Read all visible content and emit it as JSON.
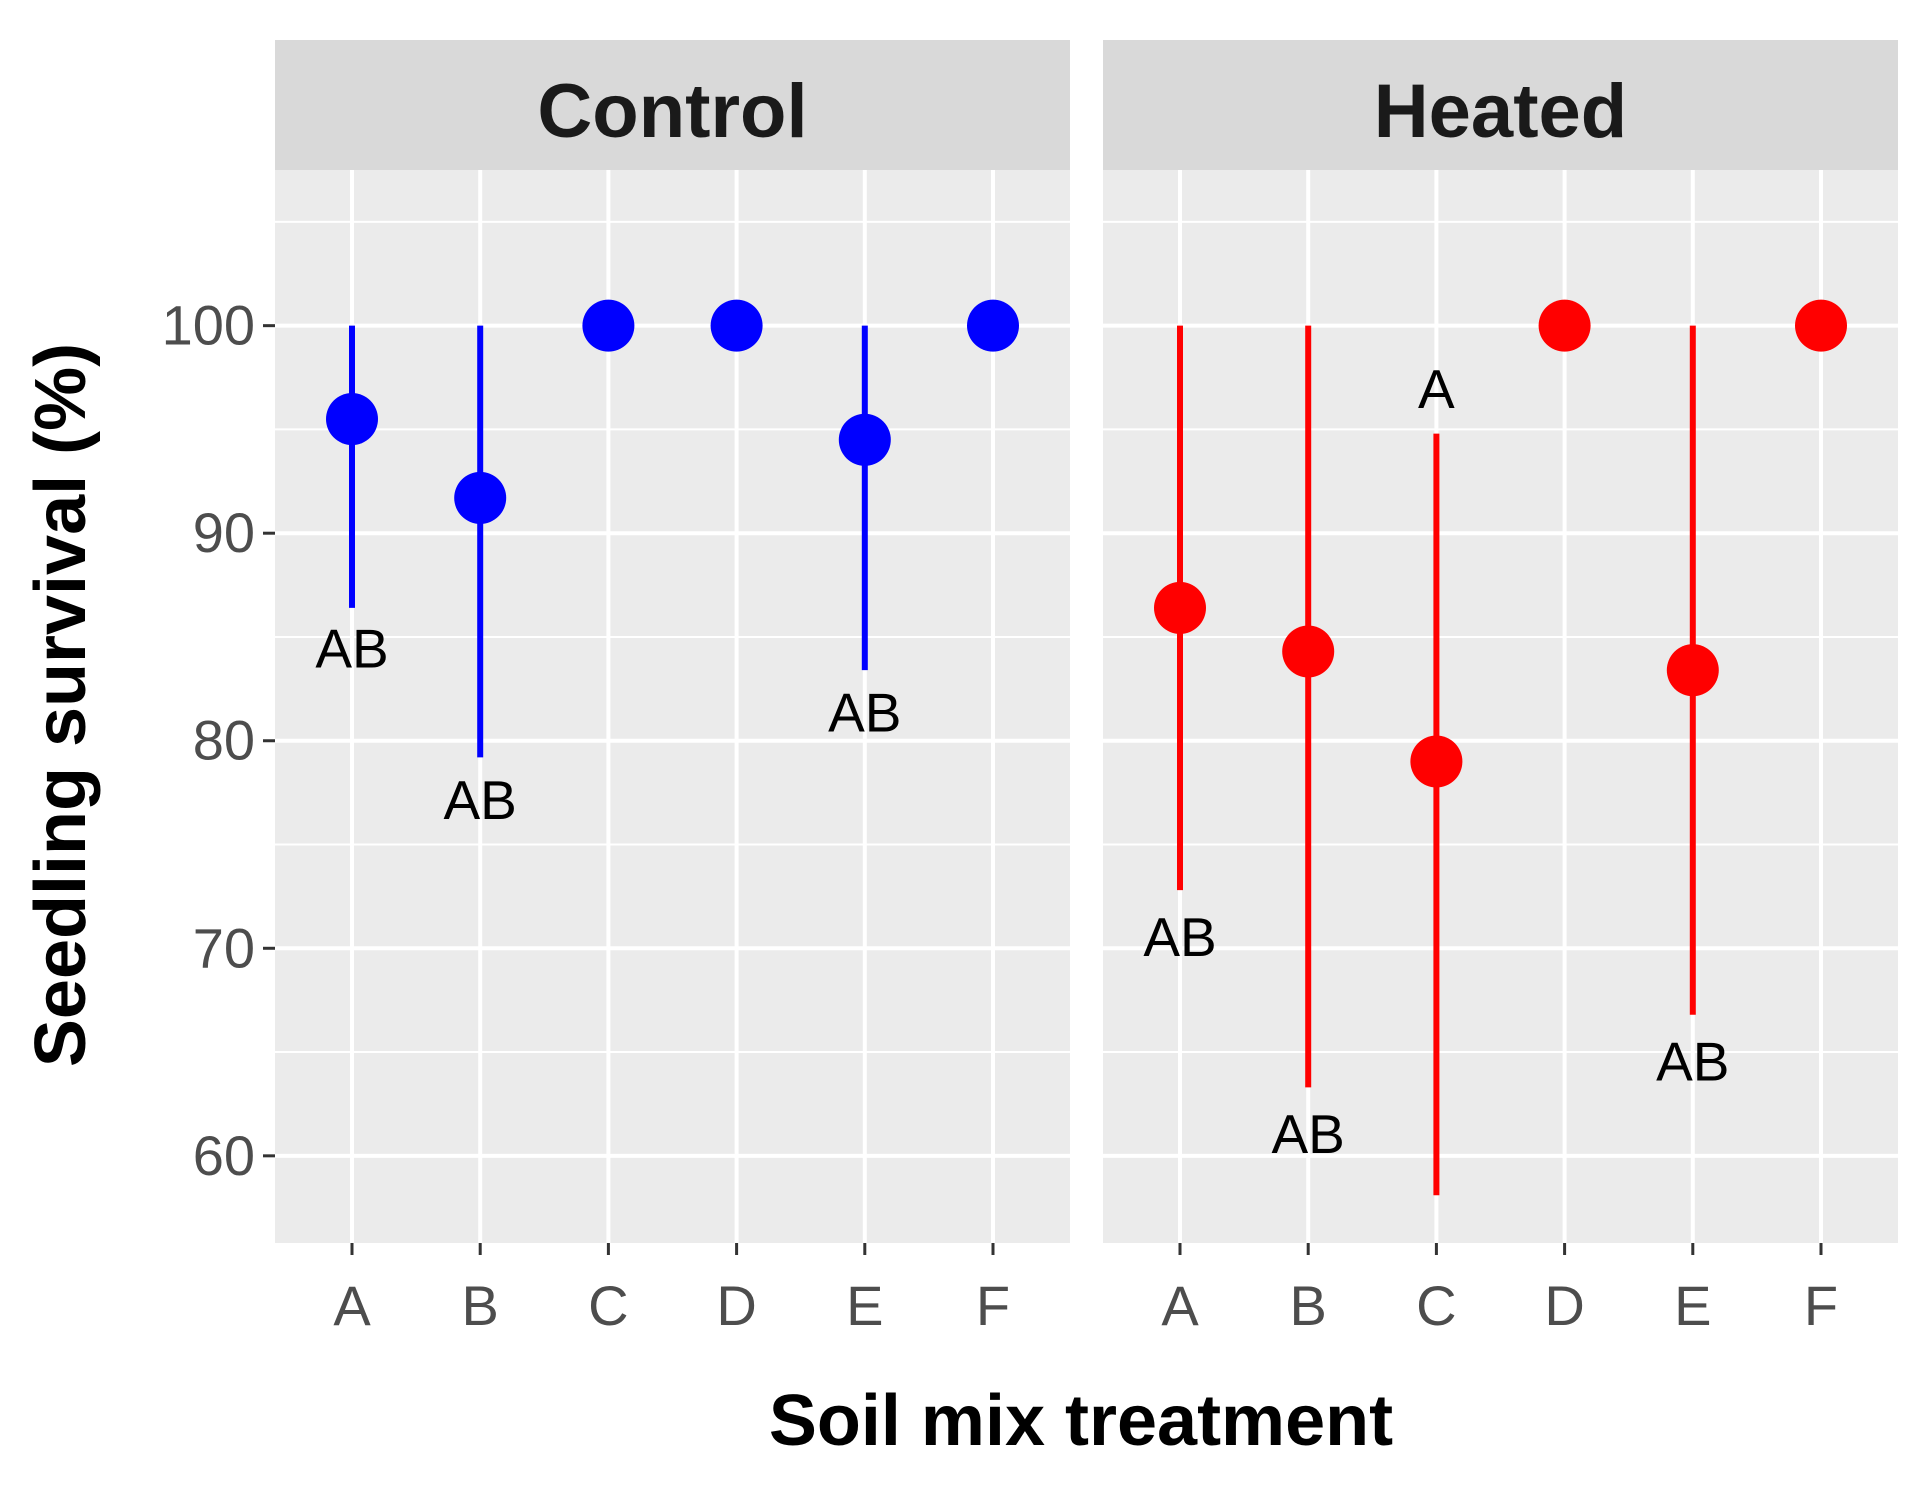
{
  "chart_data": {
    "type": "scatter",
    "subtype": "point-range (faceted)",
    "xlabel": "Soil mix treatment",
    "ylabel": "Seedling survival (%)",
    "categories": [
      "A",
      "B",
      "C",
      "D",
      "E",
      "F"
    ],
    "ylim": [
      55.8,
      107.5
    ],
    "yticks": [
      60,
      70,
      80,
      90,
      100
    ],
    "grid": true,
    "facets": [
      {
        "name": "Control",
        "color": "#0000ff",
        "points": [
          {
            "x": "A",
            "y": 95.5,
            "ymin": 86.4,
            "ymax": 100,
            "label": "AB",
            "label_y": 84.5
          },
          {
            "x": "B",
            "y": 91.7,
            "ymin": 79.2,
            "ymax": 100,
            "label": "AB",
            "label_y": 77.2
          },
          {
            "x": "C",
            "y": 100,
            "ymin": 100,
            "ymax": 100,
            "label": null,
            "label_y": null
          },
          {
            "x": "D",
            "y": 100,
            "ymin": 100,
            "ymax": 100,
            "label": null,
            "label_y": null
          },
          {
            "x": "E",
            "y": 94.5,
            "ymin": 83.4,
            "ymax": 100,
            "label": "AB",
            "label_y": 81.4
          },
          {
            "x": "F",
            "y": 100,
            "ymin": 100,
            "ymax": 100,
            "label": null,
            "label_y": null
          }
        ]
      },
      {
        "name": "Heated",
        "color": "#ff0000",
        "points": [
          {
            "x": "A",
            "y": 86.4,
            "ymin": 72.8,
            "ymax": 100,
            "label": "AB",
            "label_y": 70.6
          },
          {
            "x": "B",
            "y": 84.3,
            "ymin": 63.3,
            "ymax": 100,
            "label": "AB",
            "label_y": 61.1
          },
          {
            "x": "C",
            "y": 79.0,
            "ymin": 58.1,
            "ymax": 94.8,
            "label": "A",
            "label_y": 97.0
          },
          {
            "x": "D",
            "y": 100,
            "ymin": 100,
            "ymax": 100,
            "label": null,
            "label_y": null
          },
          {
            "x": "E",
            "y": 83.4,
            "ymin": 66.8,
            "ymax": 100,
            "label": "AB",
            "label_y": 64.6
          },
          {
            "x": "F",
            "y": 100,
            "ymin": 100,
            "ymax": 100,
            "label": null,
            "label_y": null
          }
        ]
      }
    ]
  }
}
